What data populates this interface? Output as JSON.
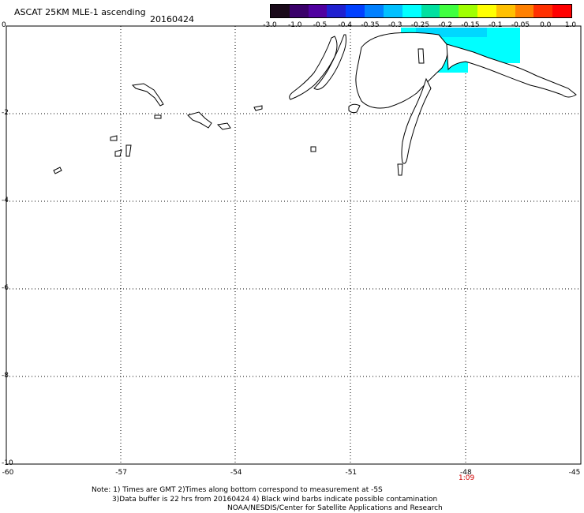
{
  "title": "ASCAT 25KM MLE-1 ascending",
  "date": "20160424",
  "colorbar": {
    "labels": [
      "-3.0",
      "-1.0",
      "-0.5",
      "-0.4",
      "-0.35",
      "-0.3",
      "-0.25",
      "-0.2",
      "-0.15",
      "-0.1",
      "-0.05",
      "0.0",
      "1.0"
    ],
    "colors": [
      "#1a0a1a",
      "#3a006a",
      "#5000a0",
      "#2020d0",
      "#0040ff",
      "#0080ff",
      "#00c0ff",
      "#00ffff",
      "#00e0a0",
      "#40ff40",
      "#a0ff00",
      "#ffff00",
      "#ffc000",
      "#ff8000",
      "#ff3000",
      "#ff0000"
    ]
  },
  "axes": {
    "y_labels": [
      "0",
      "-2",
      "-4",
      "-6",
      "-8",
      "-10"
    ],
    "x_labels": [
      "-60",
      "-57",
      "-54",
      "-51",
      "-48",
      "-45"
    ]
  },
  "time_label": "1:09",
  "notes": {
    "line1": "Note: 1) Times are GMT 2)Times along bottom correspond to measurement at -5S",
    "line2": "3)Data buffer is 22 hrs from 20160424 4) Black wind barbs indicate possible contamination",
    "line3": "NOAA/NESDIS/Center for Satellite Applications and Research"
  },
  "colors": {
    "data_cyan": "#00ffff",
    "data_blue": "#00bfff",
    "grid": "#000000",
    "time_label": "#d00000"
  }
}
